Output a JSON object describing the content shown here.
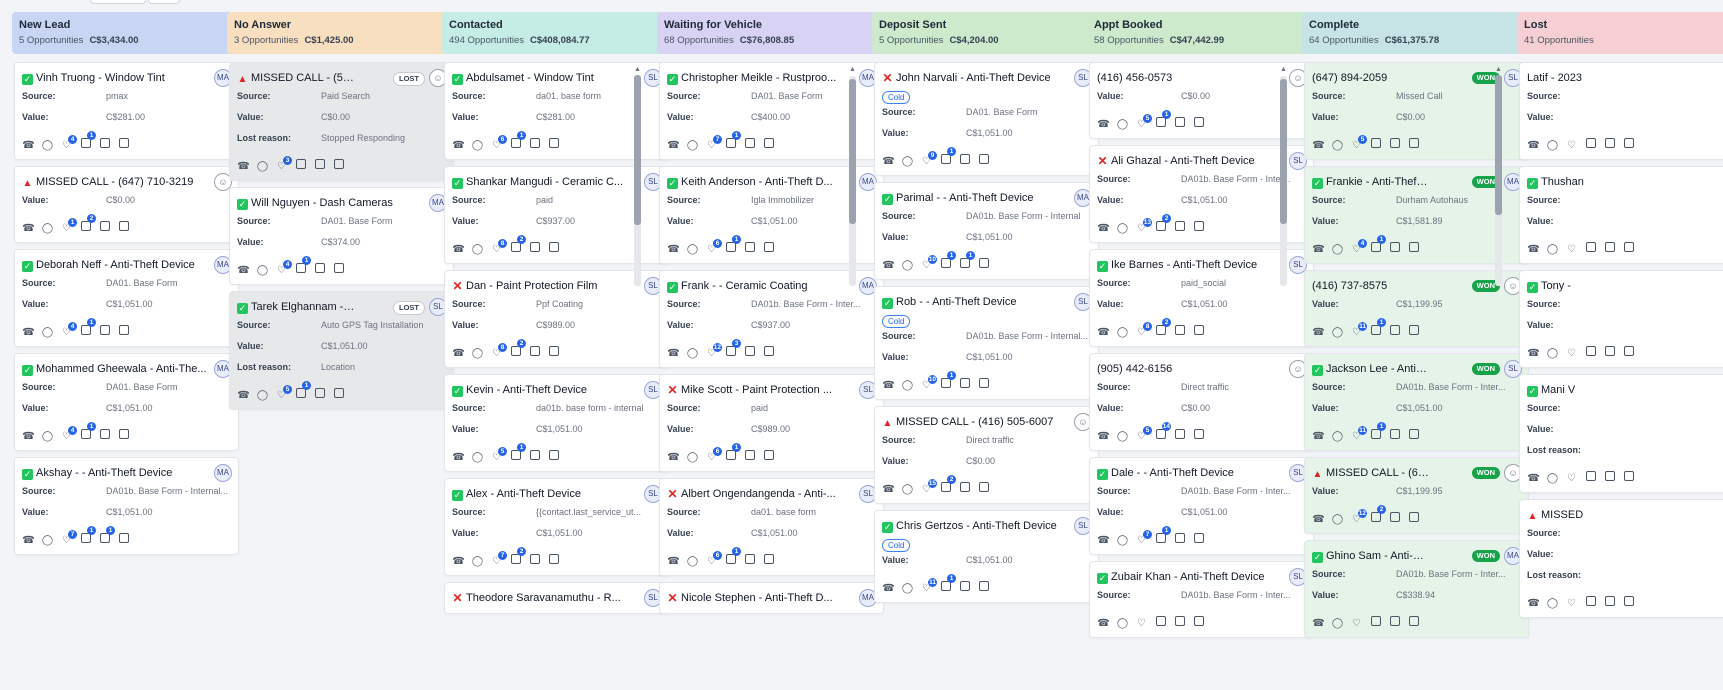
{
  "columns": [
    {
      "title": "New Lead",
      "count": "5 Opportunities",
      "amount": "C$3,434.00",
      "color": "#c9d5f5",
      "cards": [
        {
          "title": "Vinh Truong - Window Tint",
          "prefix": "ok",
          "avatar": "MA",
          "rows": [
            [
              "Source:",
              "pmax"
            ],
            [
              "Value:",
              "C$281.00"
            ]
          ],
          "badges": [
            4,
            1
          ]
        },
        {
          "title": "MISSED CALL - (647) 710-3219",
          "prefix": "bell",
          "avatar": "person",
          "rows": [
            [
              "Value:",
              "C$0.00"
            ]
          ],
          "badges": [
            1,
            2
          ]
        },
        {
          "title": "Deborah Neff - Anti-Theft Device",
          "prefix": "ok",
          "avatar": "MA",
          "rows": [
            [
              "Source:",
              "DA01. Base Form"
            ],
            [
              "Value:",
              "C$1,051.00"
            ]
          ],
          "badges": [
            4,
            1
          ]
        },
        {
          "title": "Mohammed Gheewala - Anti-The...",
          "prefix": "ok",
          "avatar": "MA",
          "rows": [
            [
              "Source:",
              "DA01. Base Form"
            ],
            [
              "Value:",
              "C$1,051.00"
            ]
          ],
          "badges": [
            4,
            1
          ]
        },
        {
          "title": "Akshay - - Anti-Theft Device",
          "prefix": "ok",
          "avatar": "MA",
          "rows": [
            [
              "Source:",
              "DA01b. Base Form - Internal..."
            ],
            [
              "Value:",
              "C$1,051.00"
            ]
          ],
          "badges": [
            7,
            1,
            1
          ]
        }
      ]
    },
    {
      "title": "No Answer",
      "count": "3 Opportunities",
      "amount": "C$1,425.00",
      "color": "#f7dfc0",
      "cards": [
        {
          "title": "MISSED CALL - (548) 578...",
          "prefix": "bell",
          "avatar": "person",
          "tag": "LOST",
          "variant": "lost",
          "rows": [
            [
              "Source:",
              "Paid Search"
            ],
            [
              "Value:",
              "C$0.00"
            ],
            [
              "Lost reason:",
              "Stopped Responding"
            ]
          ],
          "badges": [
            3
          ]
        },
        {
          "title": "Will Nguyen - Dash Cameras",
          "prefix": "ok",
          "avatar": "MA",
          "rows": [
            [
              "Source:",
              "DA01. Base Form"
            ],
            [
              "Value:",
              "C$374.00"
            ]
          ],
          "badges": [
            4,
            1
          ]
        },
        {
          "title": "Tarek Elghannam - Anti-T...",
          "prefix": "ok",
          "avatar": "SL",
          "tag": "LOST",
          "variant": "lost",
          "rows": [
            [
              "Source:",
              "Auto GPS Tag Installation"
            ],
            [
              "Value:",
              "C$1,051.00"
            ],
            [
              "Lost reason:",
              "Location"
            ]
          ],
          "badges": [
            5,
            1
          ]
        }
      ]
    },
    {
      "title": "Contacted",
      "count": "494 Opportunities",
      "amount": "C$408,084.77",
      "color": "#c6ece6",
      "cards": [
        {
          "title": "Abdulsamet - Window Tint",
          "prefix": "ok",
          "avatar": "SL",
          "rows": [
            [
              "Source:",
              "da01. base form"
            ],
            [
              "Value:",
              "C$281.00"
            ]
          ],
          "badges": [
            6,
            1
          ]
        },
        {
          "title": "Shankar Mangudi - Ceramic C...",
          "prefix": "ok",
          "avatar": "SL",
          "rows": [
            [
              "Source:",
              "paid"
            ],
            [
              "Value:",
              "C$937.00"
            ]
          ],
          "badges": [
            8,
            2
          ]
        },
        {
          "title": "Dan - Paint Protection Film",
          "prefix": "x",
          "avatar": "SL",
          "rows": [
            [
              "Source:",
              "Ppf Coating"
            ],
            [
              "Value:",
              "C$989.00"
            ]
          ],
          "badges": [
            8,
            2
          ]
        },
        {
          "title": "Kevin - Anti-Theft Device",
          "prefix": "ok",
          "avatar": "SL",
          "rows": [
            [
              "Source:",
              "da01b. base form - internal"
            ],
            [
              "Value:",
              "C$1,051.00"
            ]
          ],
          "badges": [
            5,
            1
          ]
        },
        {
          "title": "Alex - Anti-Theft Device",
          "prefix": "ok",
          "avatar": "SL",
          "rows": [
            [
              "Source:",
              "{{contact.last_service_ut..."
            ],
            [
              "Value:",
              "C$1,051.00"
            ]
          ],
          "badges": [
            7,
            2
          ]
        },
        {
          "title": "Theodore Saravanamuthu - R...",
          "prefix": "x",
          "avatar": "SL",
          "rows": [],
          "badges": []
        }
      ]
    },
    {
      "title": "Waiting for Vehicle",
      "count": "68 Opportunities",
      "amount": "C$76,808.85",
      "color": "#d8d3f5",
      "cards": [
        {
          "title": "Christopher Meikle - Rustproo...",
          "prefix": "ok",
          "avatar": "MA",
          "rows": [
            [
              "Source:",
              "DA01. Base Form"
            ],
            [
              "Value:",
              "C$400.00"
            ]
          ],
          "badges": [
            7,
            1
          ]
        },
        {
          "title": "Keith Anderson - Anti-Theft D...",
          "prefix": "ok",
          "avatar": "MA",
          "rows": [
            [
              "Source:",
              "Igla Immobilizer"
            ],
            [
              "Value:",
              "C$1,051.00"
            ]
          ],
          "badges": [
            6,
            1
          ]
        },
        {
          "title": "Frank - - Ceramic Coating",
          "prefix": "ok",
          "avatar": "MA",
          "rows": [
            [
              "Source:",
              "DA01b. Base Form - Inter..."
            ],
            [
              "Value:",
              "C$937.00"
            ]
          ],
          "badges": [
            12,
            3
          ]
        },
        {
          "title": "Mike Scott - Paint Protection ...",
          "prefix": "x",
          "avatar": "SL",
          "rows": [
            [
              "Source:",
              "paid"
            ],
            [
              "Value:",
              "C$989.00"
            ]
          ],
          "badges": [
            6,
            1
          ]
        },
        {
          "title": "Albert Ongendangenda - Anti-...",
          "prefix": "x",
          "avatar": "SL",
          "rows": [
            [
              "Source:",
              "da01. base form"
            ],
            [
              "Value:",
              "C$1,051.00"
            ]
          ],
          "badges": [
            6,
            1
          ]
        },
        {
          "title": "Nicole Stephen - Anti-Theft D...",
          "prefix": "x",
          "avatar": "MA",
          "rows": [],
          "badges": []
        }
      ]
    },
    {
      "title": "Deposit Sent",
      "count": "5 Opportunities",
      "amount": "C$4,204.00",
      "color": "#cdeacd",
      "cards": [
        {
          "title": "John Narvali - Anti-Theft Device",
          "prefix": "x",
          "avatar": "SL",
          "cold": "Cold",
          "rows": [
            [
              "Source:",
              "DA01. Base Form"
            ],
            [
              "Value:",
              "C$1,051.00"
            ]
          ],
          "badges": [
            9,
            1
          ]
        },
        {
          "title": "Parimal - - Anti-Theft Device",
          "prefix": "ok",
          "avatar": "MA",
          "rows": [
            [
              "Source:",
              "DA01b. Base Form - Internal"
            ],
            [
              "Value:",
              "C$1,051.00"
            ]
          ],
          "badges": [
            10,
            1,
            1
          ]
        },
        {
          "title": "Rob - - Anti-Theft Device",
          "prefix": "ok",
          "avatar": "SL",
          "cold": "Cold",
          "rows": [
            [
              "Source:",
              "DA01b. Base Form - Internal..."
            ],
            [
              "Value:",
              "C$1,051.00"
            ]
          ],
          "badges": [
            10,
            1
          ]
        },
        {
          "title": "MISSED CALL - (416) 505-6007",
          "prefix": "bell",
          "avatar": "person",
          "rows": [
            [
              "Source:",
              "Direct traffic"
            ],
            [
              "Value:",
              "C$0.00"
            ]
          ],
          "badges": [
            15,
            2
          ]
        },
        {
          "title": "Chris Gertzos - Anti-Theft Device",
          "prefix": "ok",
          "avatar": "SL",
          "cold": "Cold",
          "rows": [
            [
              "Value:",
              "C$1,051.00"
            ]
          ],
          "badges": [
            11,
            1
          ]
        }
      ]
    },
    {
      "title": "Appt Booked",
      "count": "58 Opportunities",
      "amount": "C$47,442.99",
      "color": "#cdeacd",
      "cards": [
        {
          "title": "(416) 456-0573",
          "prefix": "",
          "avatar": "person",
          "rows": [
            [
              "Value:",
              "C$0.00"
            ]
          ],
          "badges": [
            5,
            1
          ]
        },
        {
          "title": "Ali Ghazal - Anti-Theft Device",
          "prefix": "x",
          "avatar": "SL",
          "rows": [
            [
              "Source:",
              "DA01b. Base Form - Inter..."
            ],
            [
              "Value:",
              "C$1,051.00"
            ]
          ],
          "badges": [
            13,
            2
          ]
        },
        {
          "title": "Ike Barnes - Anti-Theft Device",
          "prefix": "ok",
          "avatar": "SL",
          "rows": [
            [
              "Source:",
              "paid_social"
            ],
            [
              "Value:",
              "C$1,051.00"
            ]
          ],
          "badges": [
            8,
            2
          ]
        },
        {
          "title": "(905) 442-6156",
          "prefix": "",
          "avatar": "person",
          "rows": [
            [
              "Source:",
              "Direct traffic"
            ],
            [
              "Value:",
              "C$0.00"
            ]
          ],
          "badges": [
            5,
            14
          ]
        },
        {
          "title": "Dale - - Anti-Theft Device",
          "prefix": "ok",
          "avatar": "SL",
          "rows": [
            [
              "Source:",
              "DA01b. Base Form - Inter..."
            ],
            [
              "Value:",
              "C$1,051.00"
            ]
          ],
          "badges": [
            7,
            1
          ]
        },
        {
          "title": "Zubair Khan - Anti-Theft Device",
          "prefix": "ok",
          "avatar": "SL",
          "rows": [
            [
              "Source:",
              "DA01b. Base Form - Inter..."
            ]
          ],
          "badges": []
        }
      ]
    },
    {
      "title": "Complete",
      "count": "64 Opportunities",
      "amount": "C$61,375.78",
      "color": "#c6e3e6",
      "cards": [
        {
          "title": "(647) 894-2059",
          "prefix": "",
          "avatar": "SL",
          "tag": "WON",
          "variant": "won",
          "rows": [
            [
              "Source:",
              "Missed Call"
            ],
            [
              "Value:",
              "C$0.00"
            ]
          ],
          "badges": [
            5
          ]
        },
        {
          "title": "Frankie - Anti-Theft De...",
          "prefix": "ok",
          "avatar": "MA",
          "tag": "WON",
          "variant": "won",
          "rows": [
            [
              "Source:",
              "Durham Autohaus"
            ],
            [
              "Value:",
              "C$1,581.89"
            ]
          ],
          "badges": [
            4,
            1
          ]
        },
        {
          "title": "(416) 737-8575",
          "prefix": "",
          "avatar": "person",
          "tag": "WON",
          "variant": "won",
          "rows": [
            [
              "Value:",
              "C$1,199.95"
            ]
          ],
          "badges": [
            11,
            1
          ]
        },
        {
          "title": "Jackson Lee - Anti-The...",
          "prefix": "ok",
          "avatar": "SL",
          "tag": "WON",
          "variant": "won",
          "rows": [
            [
              "Source:",
              "DA01b. Base Form - Inter..."
            ],
            [
              "Value:",
              "C$1,051.00"
            ]
          ],
          "badges": [
            11,
            1
          ]
        },
        {
          "title": "MISSED CALL - (647) 4...",
          "prefix": "bell",
          "avatar": "person",
          "tag": "WON",
          "variant": "won",
          "rows": [
            [
              "Value:",
              "C$1,199.95"
            ]
          ],
          "badges": [
            12,
            2
          ]
        },
        {
          "title": "Ghino Sam - Anti-Theft...",
          "prefix": "ok",
          "avatar": "MA",
          "tag": "WON",
          "variant": "won",
          "rows": [
            [
              "Source:",
              "DA01b. Base Form - Inter..."
            ],
            [
              "Value:",
              "C$338.94"
            ]
          ],
          "badges": []
        }
      ]
    },
    {
      "title": "Lost",
      "count": "41 Opportunities",
      "amount": "",
      "color": "#f5cfd3",
      "cards": [
        {
          "title": "Latif - 2023",
          "prefix": "",
          "avatar": "",
          "rows": [
            [
              "Source:",
              ""
            ],
            [
              "Value:",
              ""
            ]
          ],
          "badges": []
        },
        {
          "title": "Thushan",
          "prefix": "ok",
          "avatar": "",
          "rows": [
            [
              "Source:",
              ""
            ],
            [
              "Value:",
              ""
            ]
          ],
          "badges": []
        },
        {
          "title": "Tony - ",
          "prefix": "ok",
          "avatar": "",
          "rows": [
            [
              "Source:",
              ""
            ],
            [
              "Value:",
              ""
            ]
          ],
          "badges": []
        },
        {
          "title": "Mani V",
          "prefix": "ok",
          "avatar": "",
          "rows": [
            [
              "Source:",
              ""
            ],
            [
              "Value:",
              ""
            ],
            [
              "Lost reason:",
              ""
            ]
          ],
          "badges": []
        },
        {
          "title": "MISSED",
          "prefix": "bell",
          "avatar": "",
          "rows": [
            [
              "Source:",
              ""
            ],
            [
              "Value:",
              ""
            ],
            [
              "Lost reason:",
              ""
            ]
          ],
          "badges": []
        }
      ]
    }
  ]
}
